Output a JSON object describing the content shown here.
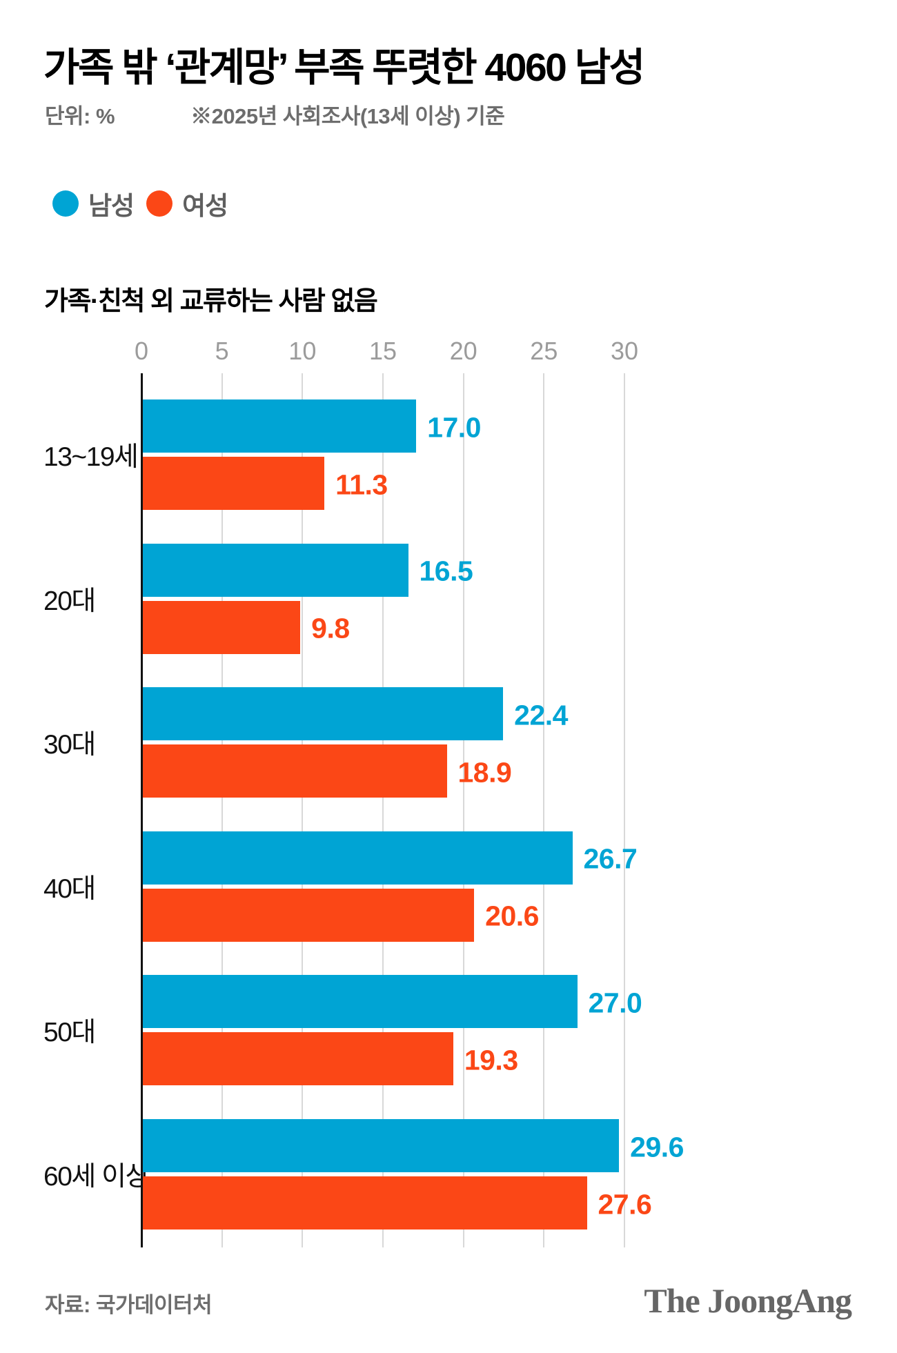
{
  "header": {
    "title": "가족 밖 ‘관계망’ 부족 뚜렷한 4060 남성",
    "unit_label": "단위: %",
    "note": "※2025년 사회조사(13세 이상) 기준"
  },
  "legend": {
    "items": [
      {
        "label": "남성",
        "color": "#00A4D4"
      },
      {
        "label": "여성",
        "color": "#FB4716"
      }
    ]
  },
  "section_title": "가족·친척 외 교류하는 사람 없음",
  "chart_data": {
    "type": "bar",
    "orientation": "horizontal",
    "title": "가족·친척 외 교류하는 사람 없음",
    "unit": "%",
    "categories": [
      "13~19세",
      "20대",
      "30대",
      "40대",
      "50대",
      "60세 이상"
    ],
    "series": [
      {
        "name": "남성",
        "color": "#00A4D4",
        "values": [
          17.0,
          16.5,
          22.4,
          26.7,
          27.0,
          29.6
        ]
      },
      {
        "name": "여성",
        "color": "#FB4716",
        "values": [
          11.3,
          9.8,
          18.9,
          20.6,
          19.3,
          27.6
        ]
      }
    ],
    "value_labels": [
      [
        "17.0",
        "11.3"
      ],
      [
        "16.5",
        "9.8"
      ],
      [
        "22.4",
        "18.9"
      ],
      [
        "26.7",
        "20.6"
      ],
      [
        "27.0",
        "19.3"
      ],
      [
        "29.6",
        "27.6"
      ]
    ],
    "xlim": [
      0,
      30
    ],
    "xticks": [
      0,
      5,
      10,
      15,
      20,
      25,
      30
    ],
    "grid": true,
    "legend_position": "top"
  },
  "footer": {
    "source": "자료: 국가데이터처",
    "logo": "The JoongAng"
  }
}
